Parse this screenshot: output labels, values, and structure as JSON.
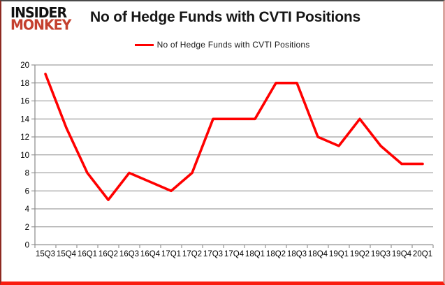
{
  "logo": {
    "line1": "INSIDER",
    "line2": "MONKEY",
    "line2_color": "#c4402e"
  },
  "header": {
    "title": "No of Hedge Funds with CVTI Positions"
  },
  "legend": {
    "label": "No of Hedge Funds with CVTI Positions",
    "line_color": "#ff0000"
  },
  "colors": {
    "series_red": "#ff0000",
    "gridline_gray": "#8a8a8a",
    "logo_red": "#c4402e",
    "frame_bottom_red": "#f91d10",
    "frame_left_darkred": "#8e2a21"
  },
  "chart_data": {
    "type": "line",
    "title": "No of Hedge Funds with CVTI Positions",
    "categories": [
      "15Q3",
      "15Q4",
      "16Q1",
      "16Q2",
      "16Q3",
      "16Q4",
      "17Q1",
      "17Q2",
      "17Q3",
      "17Q4",
      "18Q1",
      "18Q2",
      "18Q3",
      "18Q4",
      "19Q1",
      "19Q2",
      "19Q3",
      "19Q4",
      "20Q1"
    ],
    "series": [
      {
        "name": "No of Hedge Funds with CVTI Positions",
        "color": "#ff0000",
        "values": [
          19,
          13,
          8,
          5,
          8,
          7,
          6,
          8,
          14,
          14,
          14,
          18,
          18,
          12,
          11,
          14,
          11,
          9,
          9
        ]
      }
    ],
    "xlabel": "",
    "ylabel": "",
    "ylim": [
      0,
      20
    ],
    "yticks": [
      0,
      2,
      4,
      6,
      8,
      10,
      12,
      14,
      16,
      18,
      20
    ],
    "grid": true,
    "legend_position": "top"
  }
}
